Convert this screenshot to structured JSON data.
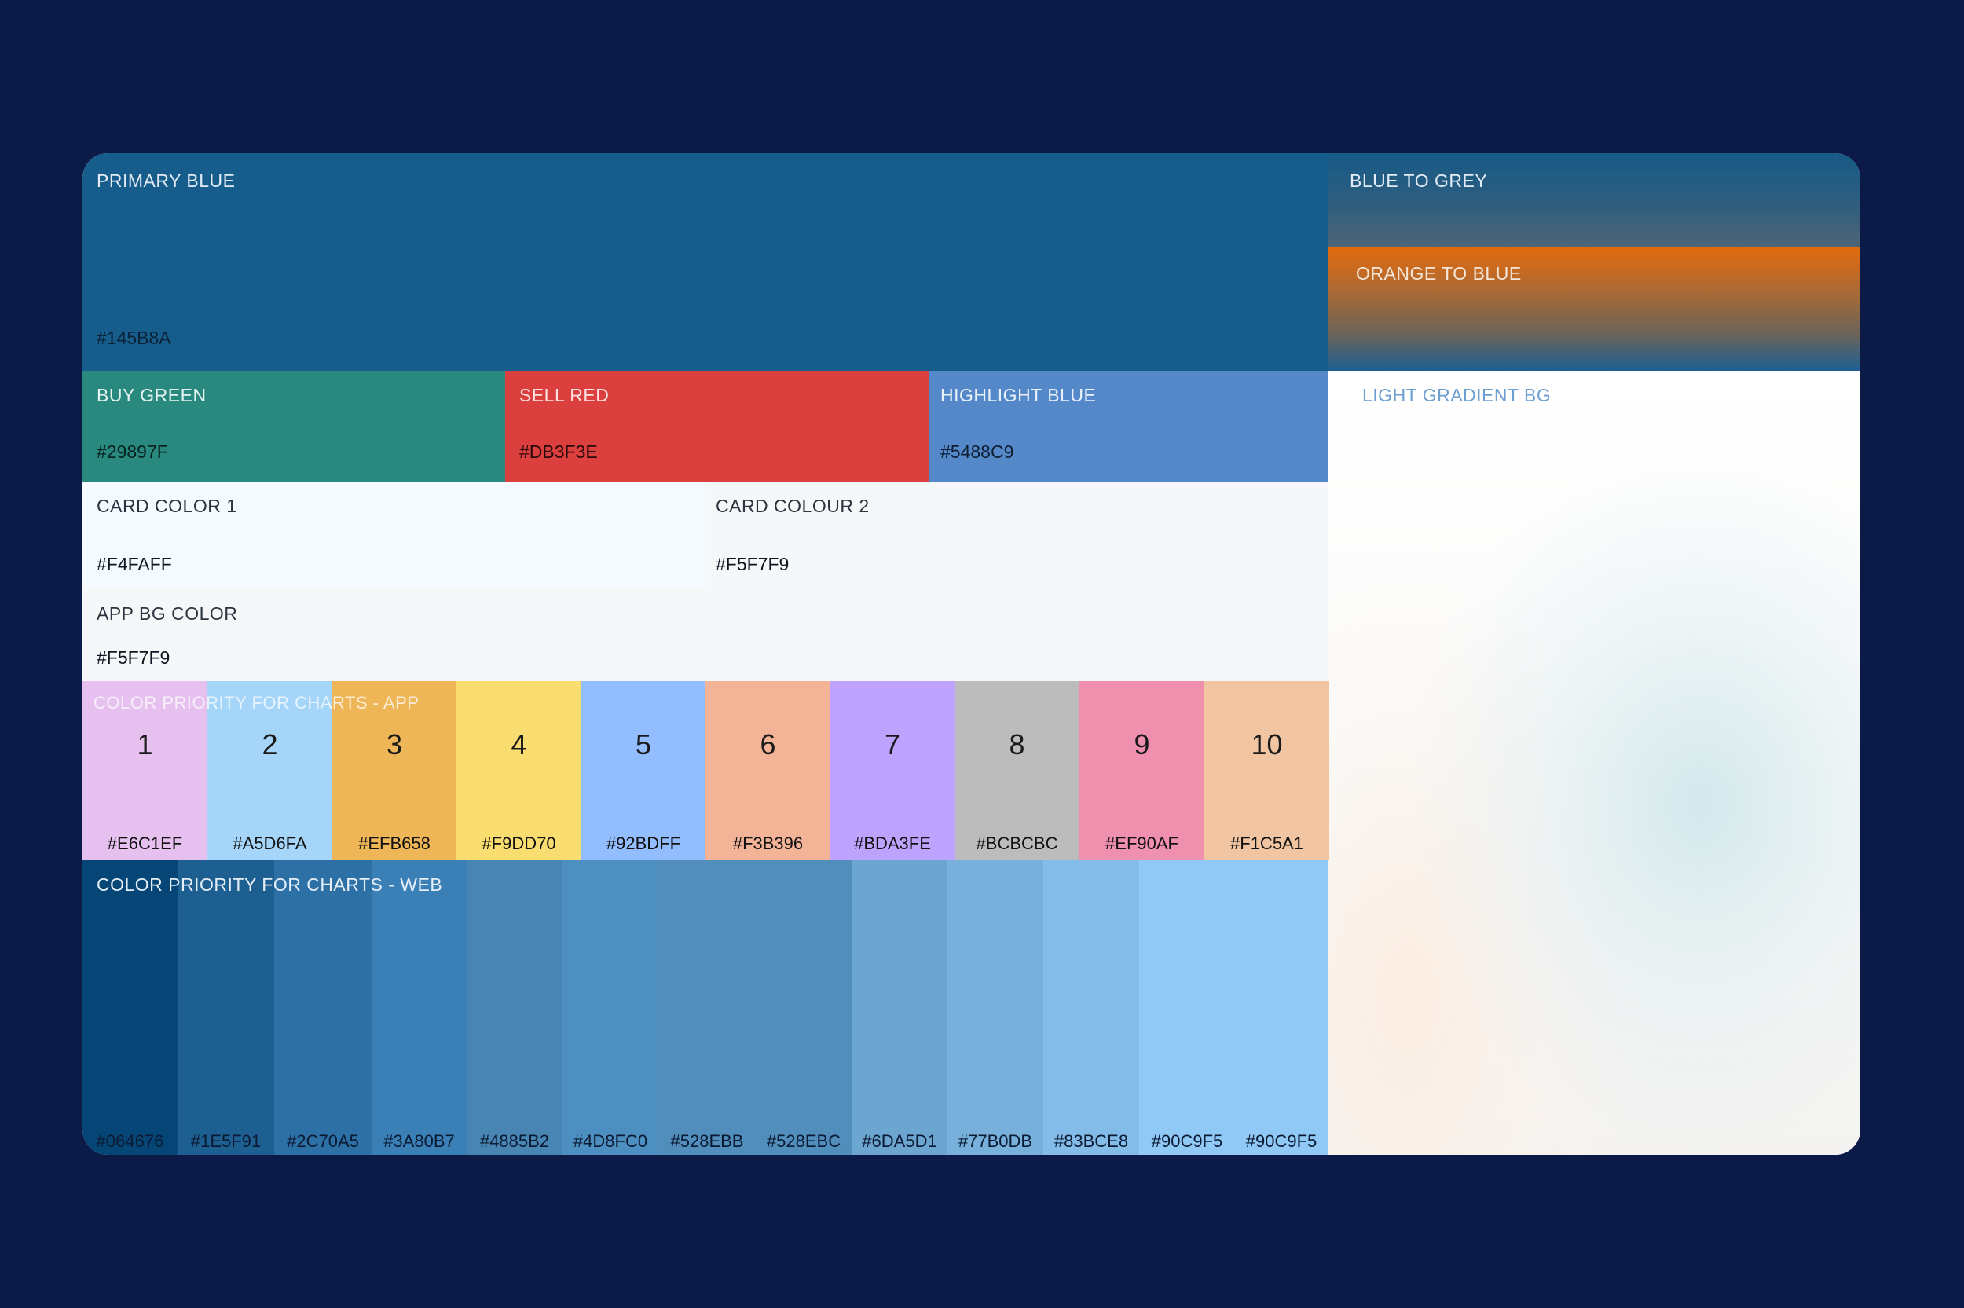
{
  "primary": {
    "label": "PRIMARY BLUE",
    "hex": "#145B8A"
  },
  "gradients": {
    "blue_to_grey": "BLUE TO GREY",
    "orange_to_blue": "ORANGE TO BLUE",
    "light_bg": "LIGHT GRADIENT BG"
  },
  "status_colors": [
    {
      "label": "BUY GREEN",
      "hex": "#29897F"
    },
    {
      "label": "SELL RED",
      "hex": "#DB3F3E"
    },
    {
      "label": "HIGHLIGHT BLUE",
      "hex": "#5488C9"
    }
  ],
  "cards": [
    {
      "label": "CARD COLOR 1",
      "hex": "#F4FAFF"
    },
    {
      "label": "CARD COLOUR 2",
      "hex": "#F5F7F9"
    }
  ],
  "app_bg": {
    "label": "APP BG COLOR",
    "hex": "#F5F7F9"
  },
  "app_charts": {
    "title": "COLOR PRIORITY FOR CHARTS - APP",
    "swatches": [
      {
        "n": "1",
        "hex": "#E6C1EF"
      },
      {
        "n": "2",
        "hex": "#A5D6FA"
      },
      {
        "n": "3",
        "hex": "#EFB658"
      },
      {
        "n": "4",
        "hex": "#F9DD70"
      },
      {
        "n": "5",
        "hex": "#92BDFF"
      },
      {
        "n": "6",
        "hex": "#F3B396"
      },
      {
        "n": "7",
        "hex": "#BDA3FE"
      },
      {
        "n": "8",
        "hex": "#BCBCBC"
      },
      {
        "n": "9",
        "hex": "#EF90AF"
      },
      {
        "n": "10",
        "hex": "#F1C5A1"
      }
    ]
  },
  "web_charts": {
    "title": "COLOR PRIORITY FOR CHARTS - WEB",
    "swatches": [
      {
        "hex": "#064676"
      },
      {
        "hex": "#1E5F91"
      },
      {
        "hex": "#2C70A5"
      },
      {
        "hex": "#3A80B7"
      },
      {
        "hex": "#4885B2"
      },
      {
        "hex": "#4D8FC0"
      },
      {
        "hex": "#528EBB"
      },
      {
        "hex": "#528EBC"
      },
      {
        "hex": "#6DA5D1"
      },
      {
        "hex": "#77B0DB"
      },
      {
        "hex": "#83BCE8"
      },
      {
        "hex": "#90C9F5"
      },
      {
        "hex": "#90C9F5"
      }
    ]
  }
}
